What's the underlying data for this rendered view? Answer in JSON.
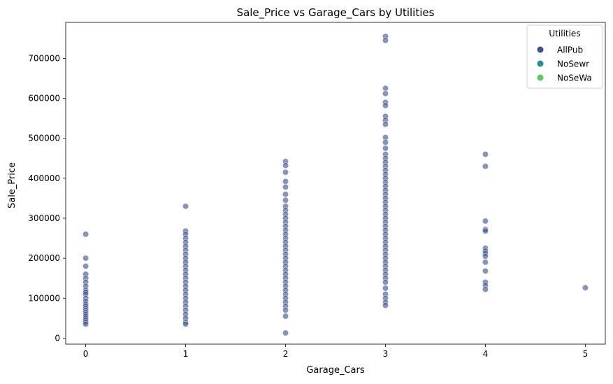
{
  "chart_data": {
    "type": "scatter",
    "title": "Sale_Price vs Garage_Cars by Utilities",
    "xlabel": "Garage_Cars",
    "ylabel": "Sale_Price",
    "xlim": [
      -0.2,
      5.2
    ],
    "ylim": [
      -15000,
      790000
    ],
    "xticks": [
      0,
      1,
      2,
      3,
      4,
      5
    ],
    "yticks": [
      0,
      100000,
      200000,
      300000,
      400000,
      500000,
      600000,
      700000
    ],
    "grid": false,
    "legend": {
      "title": "Utilities",
      "placement": "top-right",
      "entries": [
        {
          "label": "AllPub",
          "color": "#3b528b"
        },
        {
          "label": "NoSewr",
          "color": "#21918c"
        },
        {
          "label": "NoSeWa",
          "color": "#5ec962"
        }
      ]
    },
    "series": [
      {
        "name": "AllPub",
        "color": "#3b528b",
        "points": [
          [
            0,
            260000
          ],
          [
            0,
            200000
          ],
          [
            0,
            180000
          ],
          [
            0,
            160000
          ],
          [
            0,
            150000
          ],
          [
            0,
            140000
          ],
          [
            0,
            130000
          ],
          [
            0,
            120000
          ],
          [
            0,
            115000
          ],
          [
            0,
            110000
          ],
          [
            0,
            100000
          ],
          [
            0,
            92000
          ],
          [
            0,
            85000
          ],
          [
            0,
            80000
          ],
          [
            0,
            75000
          ],
          [
            0,
            70000
          ],
          [
            0,
            65000
          ],
          [
            0,
            60000
          ],
          [
            0,
            55000
          ],
          [
            0,
            50000
          ],
          [
            0,
            45000
          ],
          [
            0,
            40000
          ],
          [
            0,
            35000
          ],
          [
            1,
            330000
          ],
          [
            1,
            268000
          ],
          [
            1,
            260000
          ],
          [
            1,
            250000
          ],
          [
            1,
            240000
          ],
          [
            1,
            230000
          ],
          [
            1,
            220000
          ],
          [
            1,
            210000
          ],
          [
            1,
            200000
          ],
          [
            1,
            190000
          ],
          [
            1,
            180000
          ],
          [
            1,
            170000
          ],
          [
            1,
            160000
          ],
          [
            1,
            150000
          ],
          [
            1,
            140000
          ],
          [
            1,
            130000
          ],
          [
            1,
            120000
          ],
          [
            1,
            110000
          ],
          [
            1,
            100000
          ],
          [
            1,
            90000
          ],
          [
            1,
            80000
          ],
          [
            1,
            70000
          ],
          [
            1,
            60000
          ],
          [
            1,
            50000
          ],
          [
            1,
            40000
          ],
          [
            1,
            35000
          ],
          [
            2,
            442000
          ],
          [
            2,
            432000
          ],
          [
            2,
            415000
          ],
          [
            2,
            392000
          ],
          [
            2,
            378000
          ],
          [
            2,
            360000
          ],
          [
            2,
            345000
          ],
          [
            2,
            330000
          ],
          [
            2,
            320000
          ],
          [
            2,
            310000
          ],
          [
            2,
            300000
          ],
          [
            2,
            290000
          ],
          [
            2,
            280000
          ],
          [
            2,
            270000
          ],
          [
            2,
            260000
          ],
          [
            2,
            250000
          ],
          [
            2,
            240000
          ],
          [
            2,
            230000
          ],
          [
            2,
            220000
          ],
          [
            2,
            210000
          ],
          [
            2,
            200000
          ],
          [
            2,
            190000
          ],
          [
            2,
            180000
          ],
          [
            2,
            170000
          ],
          [
            2,
            160000
          ],
          [
            2,
            150000
          ],
          [
            2,
            140000
          ],
          [
            2,
            130000
          ],
          [
            2,
            120000
          ],
          [
            2,
            110000
          ],
          [
            2,
            100000
          ],
          [
            2,
            90000
          ],
          [
            2,
            80000
          ],
          [
            2,
            70000
          ],
          [
            2,
            55000
          ],
          [
            2,
            13000
          ],
          [
            3,
            755000
          ],
          [
            3,
            745000
          ],
          [
            3,
            625000
          ],
          [
            3,
            612000
          ],
          [
            3,
            590000
          ],
          [
            3,
            582000
          ],
          [
            3,
            555000
          ],
          [
            3,
            545000
          ],
          [
            3,
            535000
          ],
          [
            3,
            502000
          ],
          [
            3,
            490000
          ],
          [
            3,
            475000
          ],
          [
            3,
            460000
          ],
          [
            3,
            450000
          ],
          [
            3,
            440000
          ],
          [
            3,
            430000
          ],
          [
            3,
            420000
          ],
          [
            3,
            410000
          ],
          [
            3,
            400000
          ],
          [
            3,
            390000
          ],
          [
            3,
            380000
          ],
          [
            3,
            370000
          ],
          [
            3,
            360000
          ],
          [
            3,
            350000
          ],
          [
            3,
            340000
          ],
          [
            3,
            330000
          ],
          [
            3,
            320000
          ],
          [
            3,
            310000
          ],
          [
            3,
            300000
          ],
          [
            3,
            290000
          ],
          [
            3,
            280000
          ],
          [
            3,
            270000
          ],
          [
            3,
            260000
          ],
          [
            3,
            250000
          ],
          [
            3,
            240000
          ],
          [
            3,
            230000
          ],
          [
            3,
            220000
          ],
          [
            3,
            210000
          ],
          [
            3,
            200000
          ],
          [
            3,
            190000
          ],
          [
            3,
            180000
          ],
          [
            3,
            170000
          ],
          [
            3,
            160000
          ],
          [
            3,
            150000
          ],
          [
            3,
            140000
          ],
          [
            3,
            125000
          ],
          [
            3,
            110000
          ],
          [
            3,
            100000
          ],
          [
            3,
            90000
          ],
          [
            3,
            82000
          ],
          [
            4,
            460000
          ],
          [
            4,
            430000
          ],
          [
            4,
            293000
          ],
          [
            4,
            272000
          ],
          [
            4,
            268000
          ],
          [
            4,
            225000
          ],
          [
            4,
            218000
          ],
          [
            4,
            212000
          ],
          [
            4,
            205000
          ],
          [
            4,
            190000
          ],
          [
            4,
            168000
          ],
          [
            4,
            140000
          ],
          [
            4,
            132000
          ],
          [
            4,
            122000
          ],
          [
            5,
            126000
          ]
        ]
      }
    ]
  }
}
